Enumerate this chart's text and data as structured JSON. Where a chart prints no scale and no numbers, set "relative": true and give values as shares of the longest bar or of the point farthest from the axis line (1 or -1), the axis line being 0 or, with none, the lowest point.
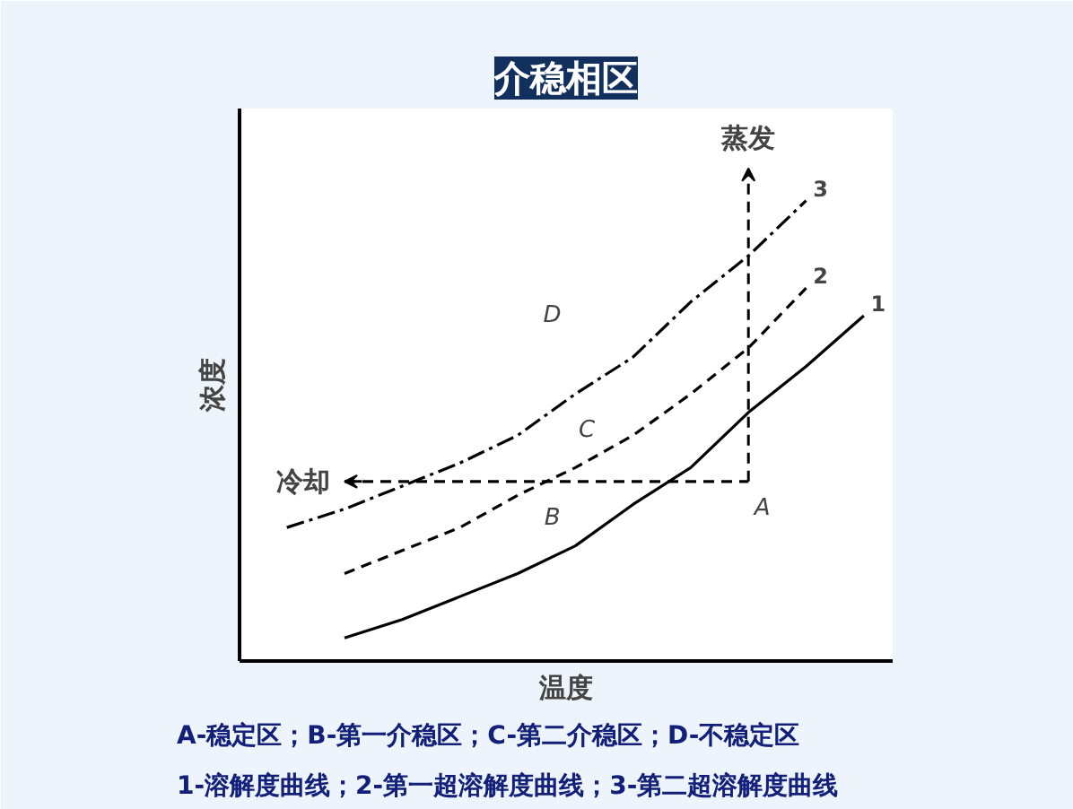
{
  "chart_data": {
    "type": "line",
    "title": "介稳相区",
    "xlabel": "温度",
    "ylabel": "浓度",
    "relative": true,
    "tick_labels": false,
    "categories": [
      null,
      null,
      null,
      null,
      null,
      null,
      null,
      null,
      null,
      null,
      null
    ],
    "series": [
      {
        "name": "3",
        "color": "#000000",
        "line_style": "dashdot",
        "values": [
          0.29,
          0.33,
          0.38,
          0.43,
          0.49,
          0.58,
          0.66,
          0.78,
          0.88,
          1.0,
          null
        ]
      },
      {
        "name": "2",
        "color": "#000000",
        "line_style": "dashed",
        "values": [
          null,
          0.19,
          0.24,
          0.29,
          0.36,
          0.42,
          0.49,
          0.58,
          0.68,
          0.81,
          null
        ]
      },
      {
        "name": "1",
        "color": "#000000",
        "line_style": "solid",
        "values": [
          null,
          0.05,
          0.09,
          0.14,
          0.19,
          0.25,
          0.34,
          0.42,
          0.54,
          0.64,
          0.75
        ]
      },
      {
        "type": "step",
        "color": "#000000",
        "line_style": "dashed",
        "values": [
          null,
          0.39,
          0.39,
          0.39,
          0.39,
          0.39,
          0.39,
          0.39,
          0.39,
          null,
          null
        ]
      }
    ],
    "annotations": [
      "冷却",
      "蒸发",
      "A",
      "B",
      "C",
      "D",
      "A-稳定区；B-第一介稳区；C-第二介稳区；D-不稳定区",
      "1-溶解度曲线；2-第一超溶解度曲线；3-第二超溶解度曲线"
    ]
  }
}
